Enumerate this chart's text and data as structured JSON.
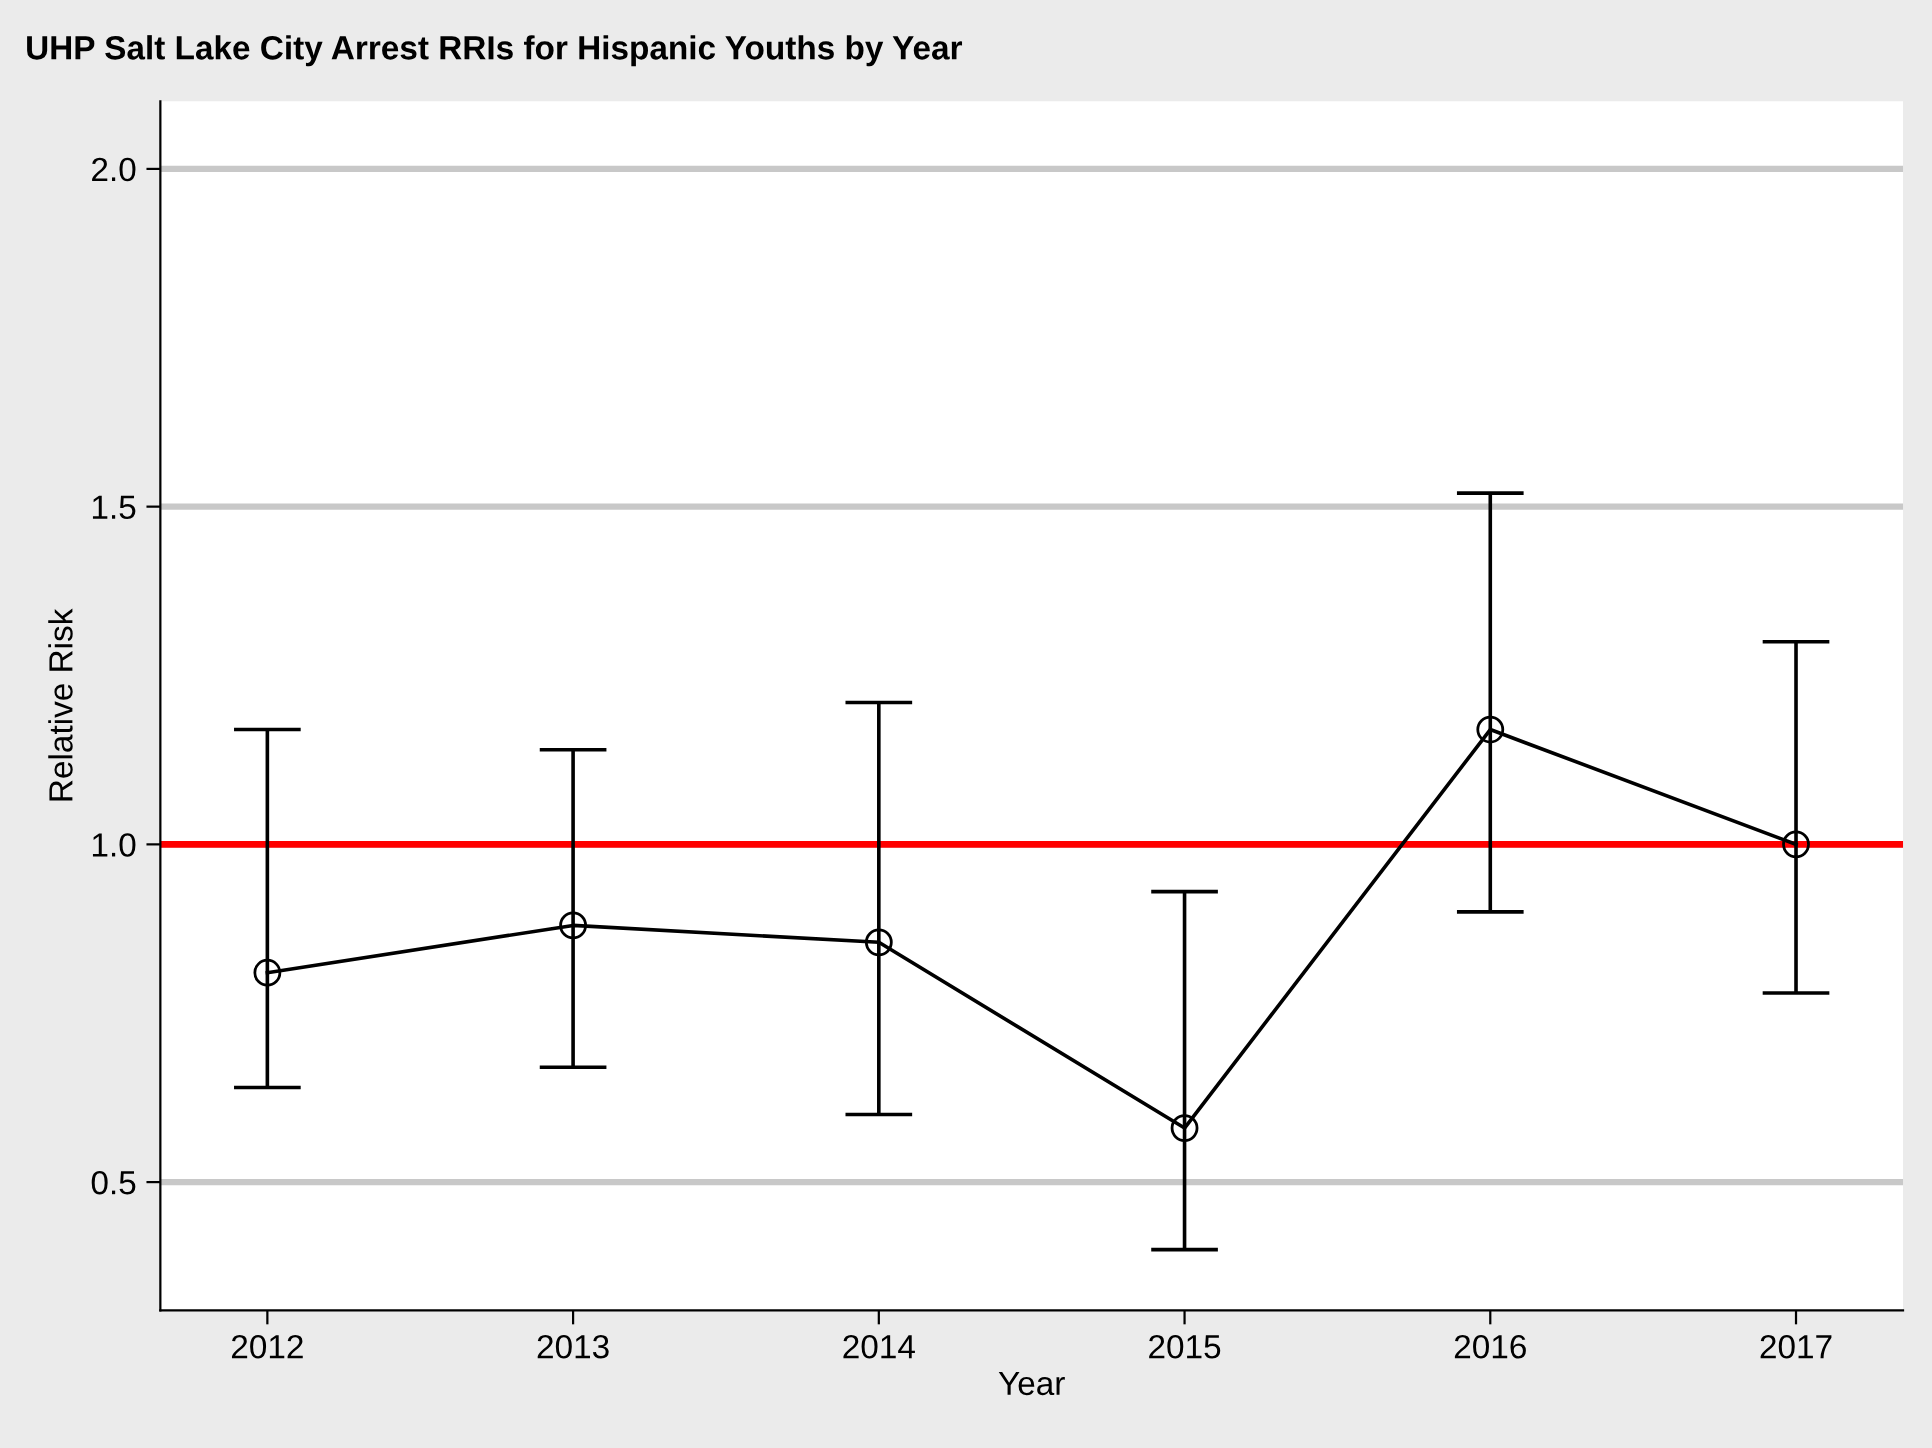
{
  "chart_data": {
    "type": "line",
    "title": "UHP Salt Lake City Arrest RRIs for Hispanic Youths by Year",
    "xlabel": "Year",
    "ylabel": "Relative Risk",
    "categories": [
      "2012",
      "2013",
      "2014",
      "2015",
      "2016",
      "2017"
    ],
    "series": [
      {
        "color": "#000000",
        "values": [
          0.81,
          0.88,
          0.855,
          0.58,
          1.17,
          1.0
        ],
        "errors": [
          [
            0.64,
            1.17
          ],
          [
            0.67,
            1.14
          ],
          [
            0.6,
            1.21
          ],
          [
            0.4,
            0.93
          ],
          [
            0.9,
            1.52
          ],
          [
            0.78,
            1.3
          ]
        ]
      }
    ],
    "ylim": [
      0.31,
      2.1
    ],
    "yticks": [
      {
        "value": 0.5,
        "label": "0.5"
      },
      {
        "value": 1,
        "label": "1.0"
      },
      {
        "value": 1.5,
        "label": "1.5"
      },
      {
        "value": 2,
        "label": "2.0"
      }
    ],
    "ref_lines": [
      {
        "axis": "y",
        "value": 1,
        "color": "#ff0000"
      }
    ],
    "grid": "y",
    "marker": "circle",
    "line_style": "solid",
    "legend": false
  }
}
